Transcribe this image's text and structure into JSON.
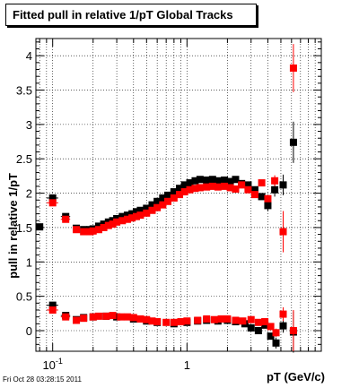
{
  "chart_data": {
    "type": "scatter",
    "title": "Fitted pull in relative 1/pT  Global Tracks",
    "xlabel": "pT (GeV/c)",
    "ylabel": "pull in relative 1/pT",
    "xscale": "log",
    "xlim": [
      0.075,
      10.0
    ],
    "ylim": [
      -0.3,
      4.25
    ],
    "xticks": [
      {
        "value": 0.1,
        "base": "10",
        "exp": "-1"
      },
      {
        "value": 1,
        "base": "1",
        "exp": ""
      }
    ],
    "yticks": [
      0,
      0.5,
      1,
      1.5,
      2,
      2.5,
      3,
      3.5,
      4
    ],
    "ytick_labels": [
      "0",
      "0.5",
      "1",
      "1.5",
      "2",
      "2.5",
      "3",
      "3.5",
      "4"
    ],
    "grid": true,
    "series": [
      {
        "color": "#000000",
        "values": [
          {
            "x": 0.08,
            "y": 1.51,
            "xerr": 0.005
          },
          {
            "x": 0.1,
            "y": 1.93,
            "xerr": 0.01
          },
          {
            "x": 0.125,
            "y": 1.66,
            "xerr": 0.01
          },
          {
            "x": 0.15,
            "y": 1.49
          },
          {
            "x": 0.17,
            "y": 1.47
          },
          {
            "x": 0.19,
            "y": 1.47
          },
          {
            "x": 0.2,
            "y": 1.48
          },
          {
            "x": 0.22,
            "y": 1.52
          },
          {
            "x": 0.24,
            "y": 1.55
          },
          {
            "x": 0.26,
            "y": 1.58
          },
          {
            "x": 0.28,
            "y": 1.6
          },
          {
            "x": 0.3,
            "y": 1.63
          },
          {
            "x": 0.33,
            "y": 1.66
          },
          {
            "x": 0.36,
            "y": 1.68
          },
          {
            "x": 0.39,
            "y": 1.7
          },
          {
            "x": 0.42,
            "y": 1.73
          },
          {
            "x": 0.45,
            "y": 1.75
          },
          {
            "x": 0.5,
            "y": 1.78
          },
          {
            "x": 0.55,
            "y": 1.83
          },
          {
            "x": 0.6,
            "y": 1.88
          },
          {
            "x": 0.66,
            "y": 1.93
          },
          {
            "x": 0.72,
            "y": 1.97
          },
          {
            "x": 0.8,
            "y": 2.02
          },
          {
            "x": 0.88,
            "y": 2.07
          },
          {
            "x": 0.96,
            "y": 2.12
          },
          {
            "x": 1.05,
            "y": 2.15
          },
          {
            "x": 1.15,
            "y": 2.18
          },
          {
            "x": 1.25,
            "y": 2.2
          },
          {
            "x": 1.4,
            "y": 2.19
          },
          {
            "x": 1.55,
            "y": 2.2
          },
          {
            "x": 1.7,
            "y": 2.18
          },
          {
            "x": 1.9,
            "y": 2.19
          },
          {
            "x": 2.1,
            "y": 2.17
          },
          {
            "x": 2.3,
            "y": 2.2
          },
          {
            "x": 2.55,
            "y": 2.14
          },
          {
            "x": 2.85,
            "y": 2.12
          },
          {
            "x": 3.2,
            "y": 2.05
          },
          {
            "x": 3.6,
            "y": 1.95
          },
          {
            "x": 4.0,
            "y": 1.82,
            "yerr": 0.08
          },
          {
            "x": 4.5,
            "y": 2.05,
            "yerr": 0.1
          },
          {
            "x": 5.2,
            "y": 2.12,
            "yerr": 0.15
          },
          {
            "x": 6.2,
            "y": 2.74,
            "yerr": 0.3
          },
          {
            "x": 0.1,
            "y": 0.37,
            "xerr": 0.01
          },
          {
            "x": 0.125,
            "y": 0.22,
            "xerr": 0.01
          },
          {
            "x": 0.15,
            "y": 0.16
          },
          {
            "x": 0.17,
            "y": 0.19
          },
          {
            "x": 0.2,
            "y": 0.2
          },
          {
            "x": 0.25,
            "y": 0.21
          },
          {
            "x": 0.3,
            "y": 0.2
          },
          {
            "x": 0.4,
            "y": 0.17
          },
          {
            "x": 0.5,
            "y": 0.14
          },
          {
            "x": 0.6,
            "y": 0.12
          },
          {
            "x": 0.8,
            "y": 0.1
          },
          {
            "x": 1.0,
            "y": 0.12
          },
          {
            "x": 1.2,
            "y": 0.14
          },
          {
            "x": 1.4,
            "y": 0.15
          },
          {
            "x": 1.7,
            "y": 0.14
          },
          {
            "x": 2.0,
            "y": 0.15
          },
          {
            "x": 2.3,
            "y": 0.13
          },
          {
            "x": 2.7,
            "y": 0.1
          },
          {
            "x": 3.0,
            "y": 0.04
          },
          {
            "x": 3.4,
            "y": 0.0
          },
          {
            "x": 3.8,
            "y": 0.08
          },
          {
            "x": 4.2,
            "y": -0.08,
            "yerr": 0.05
          },
          {
            "x": 4.6,
            "y": -0.18,
            "yerr": 0.08
          },
          {
            "x": 5.2,
            "y": 0.07,
            "yerr": 0.1
          },
          {
            "x": 6.2,
            "y": -0.02,
            "yerr": 0.3
          }
        ]
      },
      {
        "color": "#ff0000",
        "values": [
          {
            "x": 0.1,
            "y": 1.86,
            "xerr": 0.01
          },
          {
            "x": 0.125,
            "y": 1.62,
            "xerr": 0.01
          },
          {
            "x": 0.15,
            "y": 1.47
          },
          {
            "x": 0.17,
            "y": 1.44
          },
          {
            "x": 0.19,
            "y": 1.44
          },
          {
            "x": 0.2,
            "y": 1.45
          },
          {
            "x": 0.22,
            "y": 1.47
          },
          {
            "x": 0.24,
            "y": 1.5
          },
          {
            "x": 0.26,
            "y": 1.53
          },
          {
            "x": 0.28,
            "y": 1.55
          },
          {
            "x": 0.3,
            "y": 1.58
          },
          {
            "x": 0.33,
            "y": 1.6
          },
          {
            "x": 0.36,
            "y": 1.62
          },
          {
            "x": 0.39,
            "y": 1.64
          },
          {
            "x": 0.42,
            "y": 1.66
          },
          {
            "x": 0.45,
            "y": 1.68
          },
          {
            "x": 0.5,
            "y": 1.71
          },
          {
            "x": 0.55,
            "y": 1.75
          },
          {
            "x": 0.6,
            "y": 1.79
          },
          {
            "x": 0.66,
            "y": 1.83
          },
          {
            "x": 0.72,
            "y": 1.88
          },
          {
            "x": 0.8,
            "y": 1.93
          },
          {
            "x": 0.88,
            "y": 1.98
          },
          {
            "x": 0.96,
            "y": 2.02
          },
          {
            "x": 1.05,
            "y": 2.05
          },
          {
            "x": 1.15,
            "y": 2.07
          },
          {
            "x": 1.25,
            "y": 2.08
          },
          {
            "x": 1.4,
            "y": 2.09
          },
          {
            "x": 1.55,
            "y": 2.1
          },
          {
            "x": 1.7,
            "y": 2.09
          },
          {
            "x": 1.9,
            "y": 2.1
          },
          {
            "x": 2.1,
            "y": 2.08
          },
          {
            "x": 2.3,
            "y": 2.06
          },
          {
            "x": 2.55,
            "y": 2.12
          },
          {
            "x": 2.85,
            "y": 2.05
          },
          {
            "x": 3.2,
            "y": 1.98
          },
          {
            "x": 3.6,
            "y": 2.15
          },
          {
            "x": 4.0,
            "y": 1.92
          },
          {
            "x": 4.5,
            "y": 2.18,
            "yerr": 0.08
          },
          {
            "x": 5.2,
            "y": 1.44,
            "yerr": 0.3
          },
          {
            "x": 6.2,
            "y": 3.82,
            "yerr": 0.35
          },
          {
            "x": 0.1,
            "y": 0.3,
            "xerr": 0.01
          },
          {
            "x": 0.125,
            "y": 0.2,
            "xerr": 0.01
          },
          {
            "x": 0.15,
            "y": 0.15
          },
          {
            "x": 0.17,
            "y": 0.18
          },
          {
            "x": 0.2,
            "y": 0.2
          },
          {
            "x": 0.22,
            "y": 0.21
          },
          {
            "x": 0.25,
            "y": 0.21
          },
          {
            "x": 0.28,
            "y": 0.22
          },
          {
            "x": 0.32,
            "y": 0.2
          },
          {
            "x": 0.36,
            "y": 0.2
          },
          {
            "x": 0.4,
            "y": 0.19
          },
          {
            "x": 0.45,
            "y": 0.17
          },
          {
            "x": 0.5,
            "y": 0.16
          },
          {
            "x": 0.55,
            "y": 0.14
          },
          {
            "x": 0.6,
            "y": 0.13
          },
          {
            "x": 0.7,
            "y": 0.12
          },
          {
            "x": 0.8,
            "y": 0.12
          },
          {
            "x": 0.9,
            "y": 0.13
          },
          {
            "x": 1.0,
            "y": 0.14
          },
          {
            "x": 1.2,
            "y": 0.15
          },
          {
            "x": 1.4,
            "y": 0.17
          },
          {
            "x": 1.6,
            "y": 0.16
          },
          {
            "x": 1.8,
            "y": 0.17
          },
          {
            "x": 2.0,
            "y": 0.17
          },
          {
            "x": 2.3,
            "y": 0.15
          },
          {
            "x": 2.6,
            "y": 0.14
          },
          {
            "x": 3.0,
            "y": 0.16
          },
          {
            "x": 3.4,
            "y": 0.12
          },
          {
            "x": 3.8,
            "y": 0.13
          },
          {
            "x": 4.2,
            "y": 0.06
          },
          {
            "x": 4.6,
            "y": -0.03,
            "yerr": 0.06
          },
          {
            "x": 5.2,
            "y": 0.24,
            "yerr": 0.1
          },
          {
            "x": 6.2,
            "y": 0.0,
            "yerr": 0.3
          }
        ]
      }
    ]
  },
  "footer": {
    "timestamp": "Fri Oct 28 03:28:15 2011"
  }
}
